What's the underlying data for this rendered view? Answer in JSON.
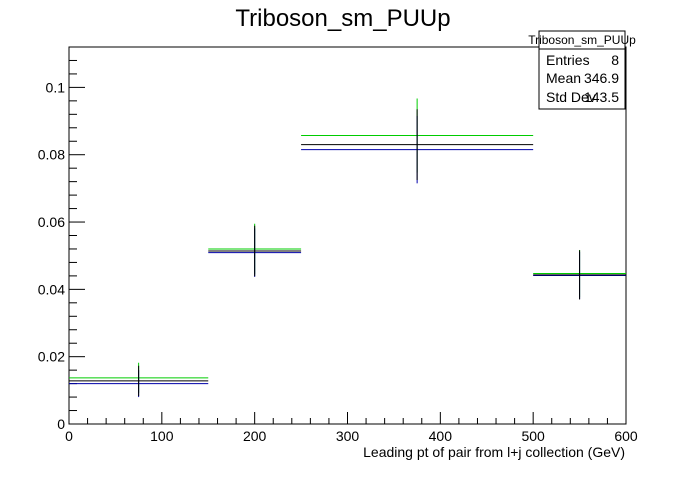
{
  "chart_data": {
    "type": "line",
    "title": "Triboson_sm_PUUp",
    "xlabel": "Leading pt of pair from l+j collection (GeV)",
    "ylabel": "",
    "xlim": [
      0,
      600
    ],
    "ylim": [
      0,
      0.112
    ],
    "x_ticks": [
      0,
      100,
      200,
      300,
      400,
      500,
      600
    ],
    "y_ticks": [
      0,
      0.02,
      0.04,
      0.06,
      0.08,
      0.1
    ],
    "x_tick_labels": [
      "0",
      "100",
      "200",
      "300",
      "400",
      "500",
      "600"
    ],
    "y_tick_labels": [
      "0",
      "0.02",
      "0.04",
      "0.06",
      "0.08",
      "0.1"
    ],
    "grid": false,
    "bins": [
      {
        "low": 0,
        "high": 150,
        "center": 75
      },
      {
        "low": 150,
        "high": 250,
        "center": 200
      },
      {
        "low": 250,
        "high": 500,
        "center": 375
      },
      {
        "low": 500,
        "high": 600,
        "center": 550
      }
    ],
    "series": [
      {
        "color": "#00cc00",
        "values": [
          0.0137,
          0.052,
          0.0857,
          0.0447
        ],
        "errors": [
          0.0045,
          0.0075,
          0.011,
          0.007
        ]
      },
      {
        "color": "#0000aa",
        "values": [
          0.012,
          0.0509,
          0.0815,
          0.0441
        ],
        "errors": [
          0.004,
          0.0072,
          0.01,
          0.007
        ]
      },
      {
        "color": "#000000",
        "values": [
          0.0128,
          0.0514,
          0.083,
          0.0443
        ],
        "errors": [
          0.0045,
          0.0075,
          0.0105,
          0.0073
        ]
      }
    ],
    "stats_box": {
      "title": "Triboson_sm_PUUp",
      "rows": [
        {
          "label": "Entries",
          "value": "8"
        },
        {
          "label": "Mean",
          "value": "346.9"
        },
        {
          "label": "Std Dev",
          "value": "143.5"
        }
      ]
    }
  }
}
